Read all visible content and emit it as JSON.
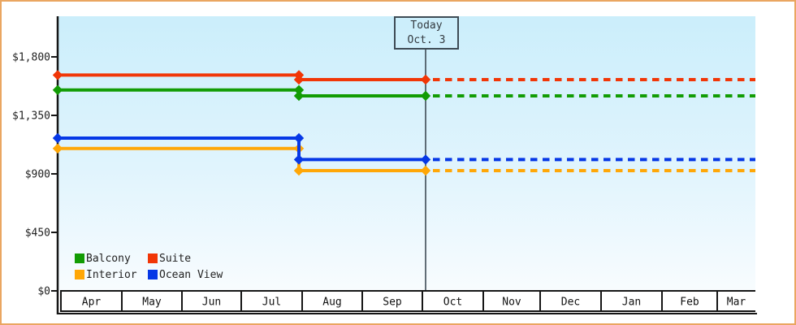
{
  "frame": {
    "border_color": "#eaa661"
  },
  "today_box": {
    "line1": "Today",
    "line2": "Oct. 3"
  },
  "y_axis": {
    "tick_labels": [
      {
        "label": "$1,800",
        "value": 1800
      },
      {
        "label": "$1,350",
        "value": 1350
      },
      {
        "label": "$900",
        "value": 900
      },
      {
        "label": "$450",
        "value": 450
      },
      {
        "label": "$0",
        "value": 0
      }
    ]
  },
  "x_axis": {
    "months": [
      "Apr",
      "May",
      "Jun",
      "Jul",
      "Aug",
      "Sep",
      "Oct",
      "Nov",
      "Dec",
      "Jan",
      "Feb",
      "Mar"
    ]
  },
  "legend": {
    "items": [
      {
        "label": "Balcony",
        "color": "#129c04"
      },
      {
        "label": "Suite",
        "color": "#f13607"
      },
      {
        "label": "Interior",
        "color": "#ffa707"
      },
      {
        "label": "Ocean View",
        "color": "#0638e6"
      }
    ]
  },
  "chart_data": {
    "type": "line",
    "title": "",
    "x_categories": [
      "Apr",
      "May",
      "Jun",
      "Jul",
      "Aug",
      "Sep",
      "Oct",
      "Nov",
      "Dec",
      "Jan",
      "Feb",
      "Mar"
    ],
    "ylim": [
      0,
      1800
    ],
    "ytick_values": [
      0,
      450,
      900,
      1350,
      1800
    ],
    "ytick_labels": [
      "$0",
      "$450",
      "$900",
      "$1,350",
      "$1,800"
    ],
    "grid": "off",
    "legend_position": "bottom-left inside plot",
    "annotations": {
      "today_label": "Today",
      "today_date": "Oct. 3",
      "today_month": "Oct"
    },
    "line_style": {
      "observed": "solid",
      "after_today": "dotted"
    },
    "price_drop_point": "late Jul",
    "series": [
      {
        "name": "Balcony",
        "color": "#129c04",
        "values": {
          "apr_to_late_jul": 1545,
          "late_jul_to_today": 1500,
          "projected_after_today": 1500
        }
      },
      {
        "name": "Suite",
        "color": "#f13607",
        "values": {
          "apr_to_late_jul": 1660,
          "late_jul_to_today": 1625,
          "projected_after_today": 1625
        }
      },
      {
        "name": "Interior",
        "color": "#ffa707",
        "values": {
          "apr_to_late_jul": 1095,
          "late_jul_to_today": 925,
          "projected_after_today": 925
        }
      },
      {
        "name": "Ocean View",
        "color": "#0638e6",
        "values": {
          "apr_to_late_jul": 1175,
          "late_jul_to_today": 1010,
          "projected_after_today": 1010
        }
      }
    ]
  }
}
